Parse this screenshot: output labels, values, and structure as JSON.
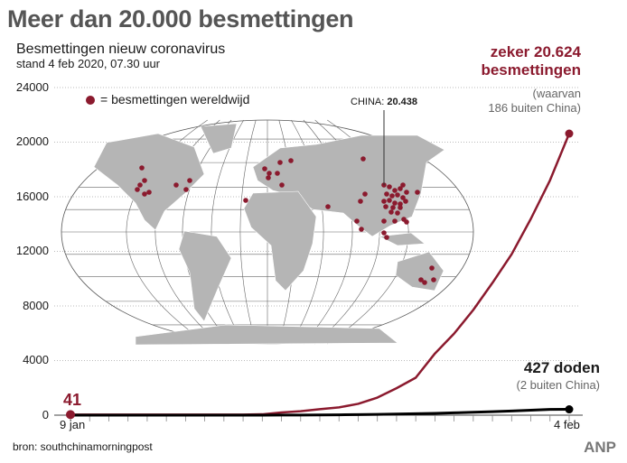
{
  "header": {
    "title": "Meer dan 20.000 besmettingen",
    "subtitle": "Besmettingen nieuw coronavirus",
    "stand": "stand 4 feb 2020, 07.30 uur"
  },
  "legend": {
    "label": "= besmettingen wereldwijd"
  },
  "map_annotation": {
    "label": "CHINA:",
    "value": "20.438"
  },
  "annotations": {
    "cases_line1": "zeker 20.624",
    "cases_line2": "besmettingen",
    "cases_note1": "(waarvan",
    "cases_note2": "186 buiten China)",
    "deaths": "427 doden",
    "deaths_note": "(2 buiten China)",
    "start_value": "41"
  },
  "footer": {
    "source": "bron: southchinamorningpost",
    "brand": "ANP"
  },
  "colors": {
    "cases": "#8b1a2e",
    "deaths": "#000000",
    "map": "#b5b5b5",
    "grid": "#bbbbbb"
  },
  "chart_data": {
    "type": "line",
    "title": "Besmettingen nieuw coronavirus",
    "x": [
      "9 jan",
      "10 jan",
      "11 jan",
      "12 jan",
      "13 jan",
      "14 jan",
      "15 jan",
      "16 jan",
      "17 jan",
      "18 jan",
      "19 jan",
      "20 jan",
      "21 jan",
      "22 jan",
      "23 jan",
      "24 jan",
      "25 jan",
      "26 jan",
      "27 jan",
      "28 jan",
      "29 jan",
      "30 jan",
      "31 jan",
      "1 feb",
      "2 feb",
      "3 feb",
      "4 feb"
    ],
    "x_tick_labels": [
      "9 jan",
      "4 feb"
    ],
    "ylim": [
      0,
      24000
    ],
    "y_ticks": [
      "0",
      "4000",
      "8000",
      "12000",
      "16000",
      "20000",
      "24000"
    ],
    "grid": true,
    "series": [
      {
        "name": "besmettingen",
        "values": [
          41,
          41,
          41,
          41,
          41,
          41,
          41,
          41,
          41,
          45,
          62,
          198,
          291,
          440,
          571,
          830,
          1287,
          1975,
          2744,
          4515,
          5974,
          7711,
          9692,
          11791,
          14380,
          17205,
          20624
        ]
      },
      {
        "name": "doden",
        "values": [
          0,
          0,
          1,
          1,
          1,
          1,
          2,
          2,
          2,
          2,
          3,
          6,
          9,
          17,
          25,
          41,
          56,
          80,
          106,
          132,
          170,
          213,
          259,
          304,
          361,
          425,
          427
        ]
      }
    ]
  }
}
